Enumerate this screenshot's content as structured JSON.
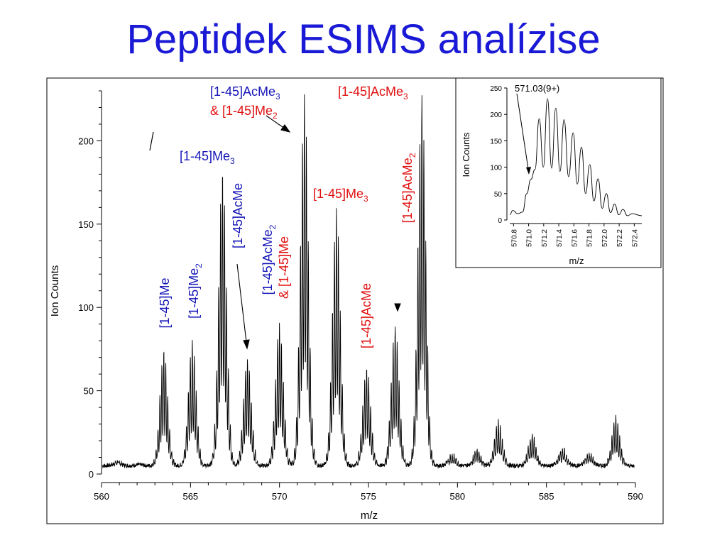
{
  "slide": {
    "title": "Peptidek ESIMS analízise"
  },
  "colors": {
    "title": "#1a1ad6",
    "blue_label": "#1515b8",
    "red_label": "#e01010",
    "trace": "#000000"
  },
  "chart_data": [
    {
      "id": "main",
      "type": "line",
      "xlabel": "m/z",
      "ylabel": "Ion Counts",
      "xlim": [
        560,
        590
      ],
      "ylim": [
        0,
        230
      ],
      "xticks": [
        560,
        565,
        570,
        575,
        580,
        585,
        590
      ],
      "yticks": [
        0,
        50,
        100,
        150,
        200
      ],
      "baseline": 5,
      "series": [
        {
          "isotope_spacing": 0.111,
          "envelopes": [
            {
              "mz": 560.9,
              "height": 8
            },
            {
              "mz": 562.1,
              "height": 6
            },
            {
              "mz": 563.5,
              "height": 75
            },
            {
              "mz": 565.1,
              "height": 80
            },
            {
              "mz": 566.8,
              "height": 185
            },
            {
              "mz": 568.2,
              "height": 70
            },
            {
              "mz": 570.0,
              "height": 90
            },
            {
              "mz": 571.4,
              "height": 228
            },
            {
              "mz": 573.2,
              "height": 160
            },
            {
              "mz": 574.9,
              "height": 65
            },
            {
              "mz": 576.5,
              "height": 90
            },
            {
              "mz": 578.0,
              "height": 228
            },
            {
              "mz": 579.7,
              "height": 12
            },
            {
              "mz": 581.1,
              "height": 15
            },
            {
              "mz": 582.3,
              "height": 32
            },
            {
              "mz": 584.2,
              "height": 24
            },
            {
              "mz": 585.9,
              "height": 16
            },
            {
              "mz": 587.4,
              "height": 13
            },
            {
              "mz": 588.9,
              "height": 35
            }
          ]
        }
      ],
      "annotations": [
        {
          "text": "[1-45]Me",
          "color": "blue",
          "rotated": true
        },
        {
          "text": "[1-45]Me",
          "sub": "2",
          "color": "blue",
          "rotated": true
        },
        {
          "text": "[1-45]Me",
          "sub": "3",
          "color": "blue",
          "rotated": false
        },
        {
          "text": "[1-45]AcMe",
          "color": "blue",
          "rotated": true
        },
        {
          "text": "[1-45]AcMe",
          "sub": "2",
          "color": "blue",
          "rotated": true
        },
        {
          "text": "& [1-45]Me",
          "color": "red",
          "rotated": true
        },
        {
          "text": "[1-45]AcMe",
          "sub": "3",
          "color": "blue",
          "rotated": false
        },
        {
          "text": "& [1-45]Me",
          "sub": "2",
          "color": "red",
          "rotated": false
        },
        {
          "text": "[1-45]Me",
          "sub": "3",
          "color": "red",
          "rotated": false
        },
        {
          "text": "[1-45]AcMe",
          "color": "red",
          "rotated": true
        },
        {
          "text": "[1-45]AcMe",
          "sub": "3",
          "color": "red",
          "rotated": false
        },
        {
          "text": "[1-45]AcMe",
          "sub": "2",
          "color": "red",
          "rotated": true
        }
      ]
    },
    {
      "id": "inset",
      "type": "line",
      "xlabel": "m/z",
      "ylabel": "Ion Counts",
      "xlim": [
        570.75,
        572.5
      ],
      "ylim": [
        0,
        250
      ],
      "xticks": [
        570.8,
        571.0,
        571.2,
        571.4,
        571.6,
        571.8,
        572.0,
        572.2,
        572.4
      ],
      "xtick_labels": [
        "570.8",
        "571.0",
        "571.2",
        "571.4",
        "571.6",
        "571.8",
        "572.0",
        "572.2",
        "572.4"
      ],
      "yticks": [
        0,
        50,
        100,
        150,
        200,
        250
      ],
      "annotation": "571.03(9+)",
      "series": [
        {
          "peaks_mz": [
            570.79,
            570.92,
            571.03,
            571.14,
            571.25,
            571.36,
            571.47,
            571.59,
            571.7,
            571.81,
            571.92,
            572.03,
            572.14,
            572.25,
            572.37
          ],
          "peaks_y": [
            18,
            15,
            77,
            192,
            230,
            212,
            190,
            165,
            138,
            105,
            78,
            50,
            30,
            20,
            12
          ],
          "valleys_y": [
            10,
            12,
            50,
            96,
            100,
            98,
            92,
            82,
            68,
            50,
            36,
            22,
            14,
            10,
            8
          ]
        }
      ]
    }
  ]
}
